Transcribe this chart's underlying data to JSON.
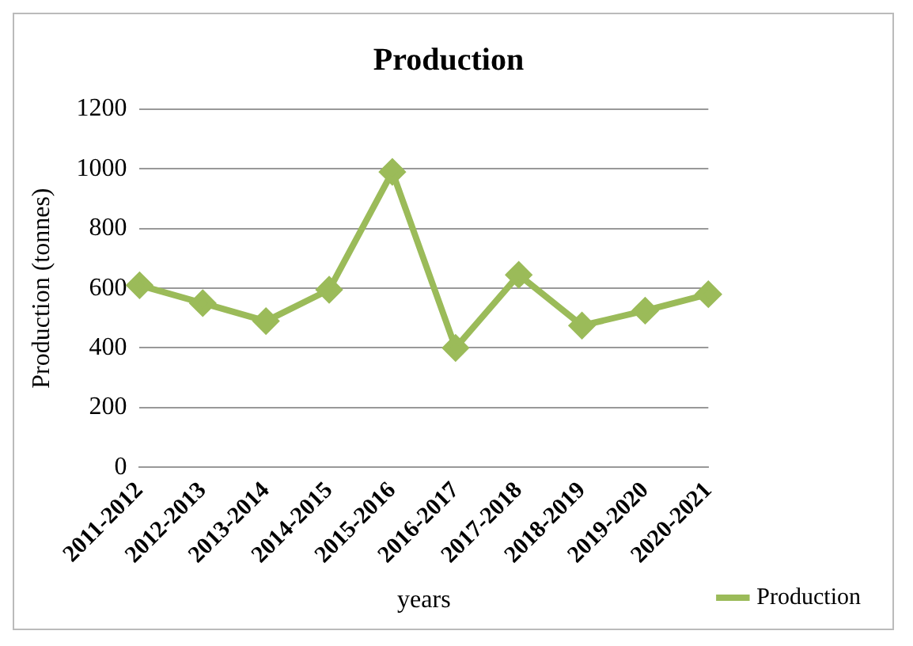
{
  "chart_data": {
    "type": "line",
    "title": "Production",
    "xlabel": "years",
    "ylabel": "Production (tonnes)",
    "categories": [
      "2011-2012",
      "2012-2013",
      "2013-2014",
      "2014-2015",
      "2015-2016",
      "2016-2017",
      "2017-2018",
      "2018-2019",
      "2019-2020",
      "2020-2021"
    ],
    "series": [
      {
        "name": "Production",
        "color": "#9bbb59",
        "values": [
          610,
          550,
          490,
          595,
          990,
          400,
          645,
          475,
          525,
          580
        ]
      }
    ],
    "ylim": [
      0,
      1200
    ],
    "yticks": [
      0,
      200,
      400,
      600,
      800,
      1000,
      1200
    ],
    "grid": "y",
    "legend": "bottom right",
    "marker": "diamond",
    "line_style": "solid"
  }
}
